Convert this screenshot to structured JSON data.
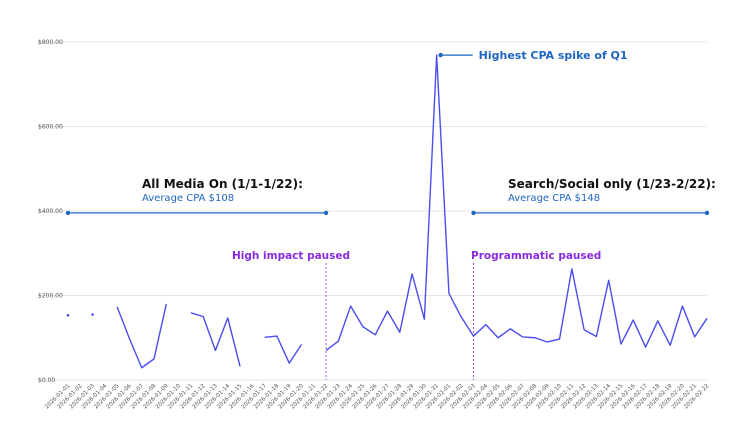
{
  "colors": {
    "series": "#4a4ef0",
    "gridline": "#e6e6e6",
    "annotation_blue": "#1f66c2",
    "annotation_purple": "#8a2be2",
    "annotation_dark": "#111111"
  },
  "chart_data": {
    "type": "line",
    "title": "",
    "xlabel": "",
    "ylabel": "",
    "ylim": [
      0,
      800
    ],
    "yticks": [
      "$0.00",
      "$200.00",
      "$400.00",
      "$600.00",
      "$800.00"
    ],
    "ytick_values": [
      0,
      200,
      400,
      600,
      800
    ],
    "grid": true,
    "legend": "none",
    "x": [
      "2026-01-01",
      "2026-01-02",
      "2026-01-03",
      "2026-01-04",
      "2026-01-05",
      "2026-01-06",
      "2026-01-07",
      "2026-01-08",
      "2026-01-09",
      "2026-01-10",
      "2026-01-11",
      "2026-01-12",
      "2026-01-13",
      "2026-01-14",
      "2026-01-15",
      "2026-01-16",
      "2026-01-17",
      "2026-01-18",
      "2026-01-19",
      "2026-01-20",
      "2026-01-21",
      "2026-01-22",
      "2026-01-23",
      "2026-01-24",
      "2026-01-25",
      "2026-01-26",
      "2026-01-27",
      "2026-01-28",
      "2026-01-29",
      "2026-01-30",
      "2026-01-31",
      "2026-02-01",
      "2026-02-02",
      "2026-02-03",
      "2026-02-04",
      "2026-02-05",
      "2026-02-06",
      "2026-02-07",
      "2026-02-08",
      "2026-02-09",
      "2026-02-10",
      "2026-02-11",
      "2026-02-12",
      "2026-02-13",
      "2026-02-14",
      "2026-02-15",
      "2026-02-16",
      "2026-02-17",
      "2026-02-18",
      "2026-02-19",
      "2026-02-20",
      "2026-02-21",
      "2026-02-22"
    ],
    "series": [
      {
        "values": [
          153,
          null,
          155,
          null,
          173,
          98,
          29,
          50,
          180,
          null,
          159,
          150,
          70,
          147,
          32,
          null,
          101,
          104,
          40,
          84,
          null,
          70,
          92,
          175,
          126,
          107,
          163,
          113,
          251,
          144,
          769,
          205,
          149,
          104,
          131,
          100,
          121,
          102,
          100,
          90,
          97,
          263,
          119,
          103,
          236,
          85,
          142,
          78,
          140,
          82,
          175,
          102,
          146
        ]
      }
    ],
    "annotations": [
      {
        "text": "Highest CPA spike of Q1",
        "x": "2026-01-31",
        "y": 769
      },
      {
        "text": "All Media On (1/1-1/22):",
        "subtext": "Average CPA $108",
        "x_start": "2026-01-01",
        "x_end": "2026-01-22",
        "y": 405
      },
      {
        "text": "Search/Social only (1/23-2/22):",
        "subtext": "Average CPA $148",
        "x_start": "2026-02-03",
        "x_end": "2026-02-22",
        "y": 405
      },
      {
        "text": "High impact paused",
        "x": "2026-01-22"
      },
      {
        "text": "Programmatic paused",
        "x": "2026-02-03"
      }
    ]
  }
}
